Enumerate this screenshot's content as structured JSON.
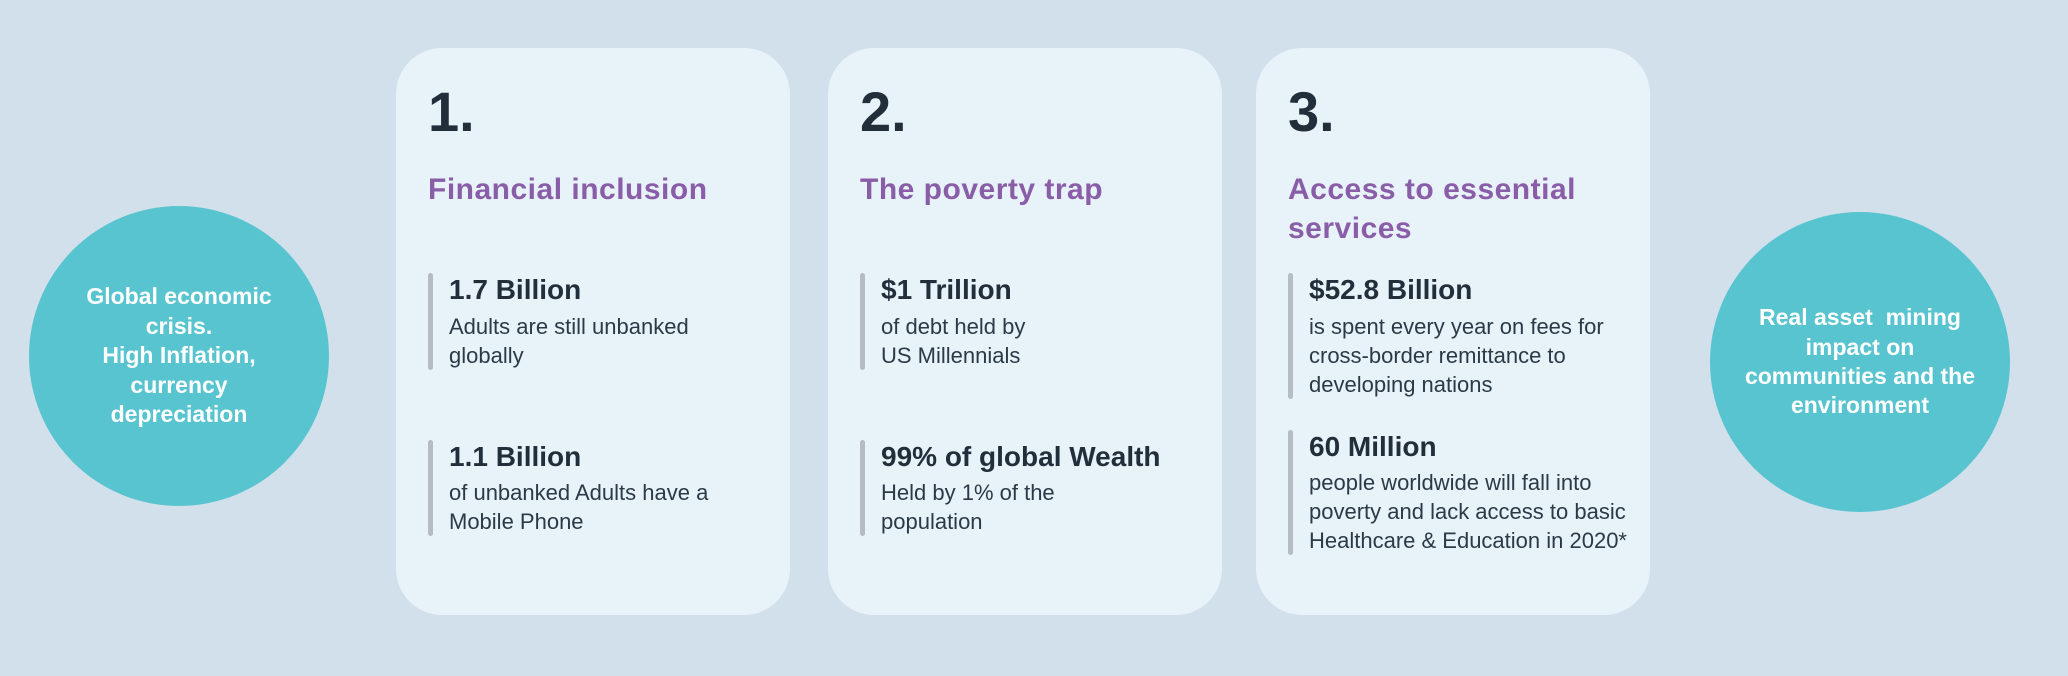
{
  "canvas": {
    "background_color": "#d2e0eb",
    "card_background_color": "#e8f2f9",
    "circle_color": "#58c4d0",
    "heading_accent_color": "#8a5da8",
    "dark_text_color": "#222f3b",
    "body_text_color": "#2b3a46",
    "accent_bar_color": "#b5bcc3"
  },
  "left_circle": {
    "lines": [
      "Global economic",
      "crisis.",
      "High Inflation,",
      "currency",
      "depreciation"
    ]
  },
  "right_circle": {
    "lines": [
      "Real asset  mining",
      "impact on",
      "communities and the",
      "environment"
    ]
  },
  "cards": [
    {
      "number": "1.",
      "title_lines": [
        "Financial inclusion"
      ],
      "stats": [
        {
          "value": "1.7 Billion",
          "description_lines": [
            "Adults are still unbanked",
            "globally"
          ]
        },
        {
          "value": "1.1 Billion",
          "description_lines": [
            "of unbanked Adults have a",
            "Mobile Phone"
          ]
        }
      ]
    },
    {
      "number": "2.",
      "title_lines": [
        "The poverty trap"
      ],
      "stats": [
        {
          "value": "$1 Trillion",
          "description_lines": [
            "of debt held by",
            "US Millennials"
          ]
        },
        {
          "value": "99% of global Wealth",
          "description_lines": [
            "Held by 1% of the",
            "population"
          ]
        }
      ]
    },
    {
      "number": "3.",
      "title_lines": [
        "Access to essential",
        "services"
      ],
      "stats": [
        {
          "value": "$52.8 Billion",
          "description_lines": [
            "is spent every year on fees for",
            "cross-border remittance to",
            "developing nations"
          ]
        },
        {
          "value": "60 Million",
          "description_lines": [
            "people worldwide will fall into",
            "poverty and lack access to basic",
            "Healthcare & Education in 2020*"
          ]
        }
      ]
    }
  ]
}
